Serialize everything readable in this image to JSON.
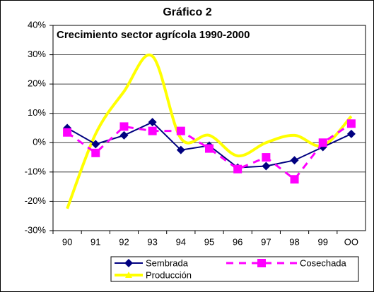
{
  "chart_data": {
    "type": "line",
    "title": "Gráfico 2",
    "subtitle": "Crecimiento sector agrícola 1990-2000",
    "categories": [
      "90",
      "91",
      "92",
      "93",
      "94",
      "95",
      "96",
      "97",
      "98",
      "99",
      "OO"
    ],
    "series": [
      {
        "name": "Sembrada",
        "color": "#000080",
        "marker": "diamond",
        "dash": false,
        "smooth": false,
        "values": [
          5,
          -0.5,
          2.5,
          7,
          -2.5,
          -1,
          -8.5,
          -8,
          -6,
          -1.5,
          3
        ]
      },
      {
        "name": "Cosechada",
        "color": "#ff00ff",
        "marker": "square",
        "dash": true,
        "smooth": false,
        "values": [
          3.5,
          -3.5,
          5.5,
          4,
          4,
          -2,
          -9,
          -5,
          -12.5,
          0,
          6.5
        ]
      },
      {
        "name": "Producción",
        "color": "#ffff00",
        "marker": "triangle",
        "dash": false,
        "smooth": true,
        "values": [
          -22.5,
          3,
          17.5,
          29.5,
          1.5,
          2.5,
          -4.5,
          0,
          2.5,
          -1,
          9
        ]
      }
    ],
    "ylim": [
      -30,
      40
    ],
    "yticks": [
      {
        "value": -30,
        "label": "-30%"
      },
      {
        "value": -20,
        "label": "-20%"
      },
      {
        "value": -10,
        "label": "-10%"
      },
      {
        "value": 0,
        "label": "0%"
      },
      {
        "value": 10,
        "label": "10%"
      },
      {
        "value": 20,
        "label": "20%"
      },
      {
        "value": 30,
        "label": "30%"
      },
      {
        "value": 40,
        "label": "40%"
      }
    ],
    "grid": true,
    "legend": "bottom"
  }
}
